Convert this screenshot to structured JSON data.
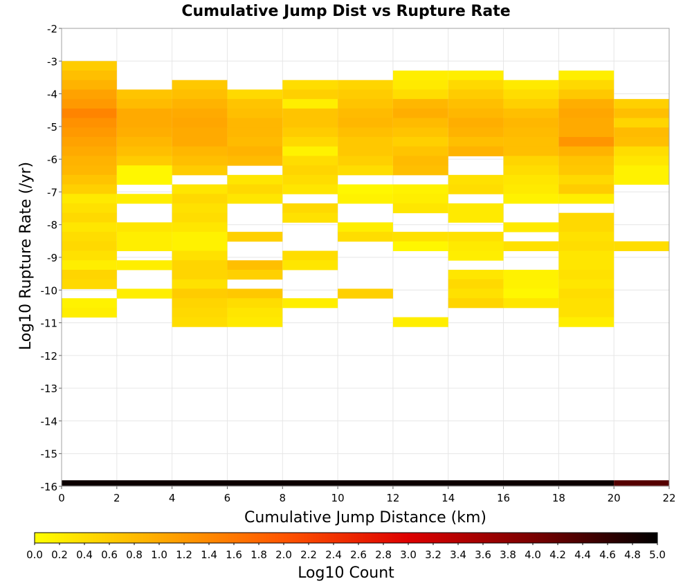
{
  "chart_data": {
    "type": "heatmap",
    "title": "Cumulative Jump Dist vs Rupture Rate",
    "xlabel": "Cumulative Jump Distance (km)",
    "ylabel": "Log10 Rupture Rate (/yr)",
    "xlim": [
      0,
      22
    ],
    "ylim": [
      -16,
      -2
    ],
    "x_ticks": [
      "0",
      "2",
      "4",
      "6",
      "8",
      "10",
      "12",
      "14",
      "16",
      "18",
      "20",
      "22"
    ],
    "y_ticks": [
      "-2",
      "-3",
      "-4",
      "-5",
      "-6",
      "-7",
      "-8",
      "-9",
      "-10",
      "-11",
      "-12",
      "-13",
      "-14",
      "-15",
      "-16"
    ],
    "grid": true,
    "x_bin_width": 2,
    "y_bin_height": 0.29,
    "colorbar": {
      "label": "Log10 Count",
      "range": [
        0,
        5
      ],
      "ticks": [
        "0.0",
        "0.2",
        "0.4",
        "0.6",
        "0.8",
        "1.0",
        "1.2",
        "1.4",
        "1.6",
        "1.8",
        "2.0",
        "2.2",
        "2.4",
        "2.6",
        "2.8",
        "3.0",
        "3.2",
        "3.4",
        "3.6",
        "3.8",
        "4.0",
        "4.2",
        "4.4",
        "4.6",
        "4.8",
        "5.0"
      ],
      "colors": [
        "#ffff00",
        "#ffaa00",
        "#ff5500",
        "#dd0000",
        "#7a0000",
        "#000000"
      ]
    },
    "columns": [
      {
        "x_start": 0,
        "cells": [
          [
            -3.0,
            0.6
          ],
          [
            -3.29,
            0.75
          ],
          [
            -3.58,
            0.9
          ],
          [
            -3.87,
            1.1
          ],
          [
            -4.16,
            1.2
          ],
          [
            -4.45,
            1.45
          ],
          [
            -4.74,
            1.3
          ],
          [
            -5.03,
            1.2
          ],
          [
            -5.32,
            1.1
          ],
          [
            -5.61,
            1.0
          ],
          [
            -5.9,
            0.9
          ],
          [
            -6.19,
            0.85
          ],
          [
            -6.48,
            0.7
          ],
          [
            -6.77,
            0.55
          ],
          [
            -7.06,
            0.25
          ],
          [
            -7.35,
            0.35
          ],
          [
            -7.64,
            0.45
          ],
          [
            -7.93,
            0.3
          ],
          [
            -8.22,
            0.4
          ],
          [
            -8.51,
            0.45
          ],
          [
            -8.8,
            0.35
          ],
          [
            -9.09,
            0.2
          ],
          [
            -9.38,
            0.5
          ],
          [
            -9.67,
            0.45
          ],
          [
            -10.25,
            0.15
          ],
          [
            -10.54,
            0.2
          ]
        ]
      },
      {
        "x_start": 2,
        "cells": [
          [
            -3.87,
            0.7
          ],
          [
            -4.16,
            0.8
          ],
          [
            -4.45,
            1.0
          ],
          [
            -4.74,
            1.0
          ],
          [
            -5.03,
            0.95
          ],
          [
            -5.32,
            0.85
          ],
          [
            -5.61,
            0.75
          ],
          [
            -5.9,
            0.6
          ],
          [
            -6.19,
            0.1
          ],
          [
            -6.48,
            0.1
          ],
          [
            -7.06,
            0.2
          ],
          [
            -7.93,
            0.3
          ],
          [
            -8.22,
            0.2
          ],
          [
            -8.51,
            0.2
          ],
          [
            -9.09,
            0.2
          ],
          [
            -9.96,
            0.2
          ]
        ]
      },
      {
        "x_start": 4,
        "cells": [
          [
            -3.58,
            0.65
          ],
          [
            -3.87,
            0.75
          ],
          [
            -4.16,
            0.9
          ],
          [
            -4.45,
            1.0
          ],
          [
            -4.74,
            1.05
          ],
          [
            -5.03,
            1.0
          ],
          [
            -5.32,
            1.0
          ],
          [
            -5.61,
            0.85
          ],
          [
            -5.9,
            0.75
          ],
          [
            -6.19,
            0.6
          ],
          [
            -6.77,
            0.3
          ],
          [
            -7.06,
            0.45
          ],
          [
            -7.35,
            0.35
          ],
          [
            -7.64,
            0.4
          ],
          [
            -7.93,
            0.3
          ],
          [
            -8.22,
            0.15
          ],
          [
            -8.51,
            0.15
          ],
          [
            -8.8,
            0.35
          ],
          [
            -9.09,
            0.5
          ],
          [
            -9.38,
            0.5
          ],
          [
            -9.67,
            0.35
          ],
          [
            -9.96,
            0.6
          ],
          [
            -10.25,
            0.5
          ],
          [
            -10.54,
            0.45
          ],
          [
            -10.83,
            0.4
          ]
        ]
      },
      {
        "x_start": 6,
        "cells": [
          [
            -3.87,
            0.45
          ],
          [
            -4.16,
            0.7
          ],
          [
            -4.45,
            0.75
          ],
          [
            -4.74,
            0.85
          ],
          [
            -5.03,
            0.85
          ],
          [
            -5.32,
            0.8
          ],
          [
            -5.61,
            0.9
          ],
          [
            -5.9,
            0.8
          ],
          [
            -6.48,
            0.3
          ],
          [
            -6.77,
            0.45
          ],
          [
            -7.06,
            0.3
          ],
          [
            -8.22,
            0.55
          ],
          [
            -9.09,
            0.75
          ],
          [
            -9.38,
            0.55
          ],
          [
            -9.96,
            0.65
          ],
          [
            -10.25,
            0.4
          ],
          [
            -10.54,
            0.3
          ],
          [
            -10.83,
            0.25
          ]
        ]
      },
      {
        "x_start": 8,
        "cells": [
          [
            -3.58,
            0.4
          ],
          [
            -3.87,
            0.55
          ],
          [
            -4.16,
            0.2
          ],
          [
            -4.45,
            0.7
          ],
          [
            -4.74,
            0.7
          ],
          [
            -5.03,
            0.6
          ],
          [
            -5.32,
            0.45
          ],
          [
            -5.61,
            0.15
          ],
          [
            -5.9,
            0.4
          ],
          [
            -6.19,
            0.5
          ],
          [
            -6.48,
            0.4
          ],
          [
            -6.77,
            0.3
          ],
          [
            -7.35,
            0.45
          ],
          [
            -7.64,
            0.35
          ],
          [
            -8.8,
            0.4
          ],
          [
            -9.09,
            0.3
          ],
          [
            -10.25,
            0.2
          ]
        ]
      },
      {
        "x_start": 10,
        "cells": [
          [
            -3.58,
            0.5
          ],
          [
            -3.87,
            0.6
          ],
          [
            -4.16,
            0.7
          ],
          [
            -4.45,
            0.8
          ],
          [
            -4.74,
            0.85
          ],
          [
            -5.03,
            0.75
          ],
          [
            -5.32,
            0.65
          ],
          [
            -5.61,
            0.65
          ],
          [
            -5.9,
            0.55
          ],
          [
            -6.19,
            0.4
          ],
          [
            -6.77,
            0.1
          ],
          [
            -7.06,
            0.15
          ],
          [
            -7.93,
            0.2
          ],
          [
            -8.22,
            0.4
          ],
          [
            -9.96,
            0.55
          ]
        ]
      },
      {
        "x_start": 12,
        "cells": [
          [
            -3.29,
            0.2
          ],
          [
            -3.58,
            0.25
          ],
          [
            -3.87,
            0.4
          ],
          [
            -4.16,
            0.85
          ],
          [
            -4.45,
            0.95
          ],
          [
            -4.74,
            0.8
          ],
          [
            -5.03,
            0.7
          ],
          [
            -5.32,
            0.55
          ],
          [
            -5.61,
            0.7
          ],
          [
            -5.9,
            0.8
          ],
          [
            -6.19,
            0.75
          ],
          [
            -6.77,
            0.15
          ],
          [
            -7.06,
            0.2
          ],
          [
            -7.35,
            0.3
          ],
          [
            -8.22,
            0.35
          ],
          [
            -8.51,
            0.1
          ],
          [
            -10.83,
            0.2
          ]
        ]
      },
      {
        "x_start": 14,
        "cells": [
          [
            -3.29,
            0.2
          ],
          [
            -3.58,
            0.45
          ],
          [
            -3.87,
            0.6
          ],
          [
            -4.16,
            0.75
          ],
          [
            -4.45,
            0.85
          ],
          [
            -4.74,
            0.95
          ],
          [
            -5.03,
            0.9
          ],
          [
            -5.32,
            0.75
          ],
          [
            -5.61,
            0.9
          ],
          [
            -6.48,
            0.35
          ],
          [
            -6.77,
            0.4
          ],
          [
            -7.35,
            0.25
          ],
          [
            -7.64,
            0.25
          ],
          [
            -8.22,
            0.35
          ],
          [
            -8.51,
            0.25
          ],
          [
            -8.8,
            0.2
          ],
          [
            -9.38,
            0.3
          ],
          [
            -9.67,
            0.45
          ],
          [
            -9.96,
            0.35
          ],
          [
            -10.25,
            0.5
          ]
        ]
      },
      {
        "x_start": 16,
        "cells": [
          [
            -3.58,
            0.25
          ],
          [
            -3.87,
            0.4
          ],
          [
            -4.16,
            0.55
          ],
          [
            -4.45,
            0.75
          ],
          [
            -4.74,
            0.85
          ],
          [
            -5.03,
            0.8
          ],
          [
            -5.32,
            0.75
          ],
          [
            -5.61,
            0.75
          ],
          [
            -5.9,
            0.5
          ],
          [
            -6.19,
            0.4
          ],
          [
            -6.48,
            0.3
          ],
          [
            -6.77,
            0.25
          ],
          [
            -7.06,
            0.15
          ],
          [
            -7.93,
            0.25
          ],
          [
            -8.51,
            0.35
          ],
          [
            -9.38,
            0.15
          ],
          [
            -9.67,
            0.15
          ],
          [
            -9.96,
            0.1
          ],
          [
            -10.25,
            0.3
          ]
        ]
      },
      {
        "x_start": 18,
        "cells": [
          [
            -3.29,
            0.2
          ],
          [
            -3.58,
            0.45
          ],
          [
            -3.87,
            0.65
          ],
          [
            -4.16,
            0.95
          ],
          [
            -4.45,
            1.05
          ],
          [
            -4.74,
            1.0
          ],
          [
            -5.03,
            1.0
          ],
          [
            -5.32,
            1.25
          ],
          [
            -5.61,
            0.9
          ],
          [
            -5.9,
            0.7
          ],
          [
            -6.19,
            0.65
          ],
          [
            -6.48,
            0.45
          ],
          [
            -6.77,
            0.6
          ],
          [
            -7.06,
            0.2
          ],
          [
            -7.64,
            0.45
          ],
          [
            -7.93,
            0.45
          ],
          [
            -8.22,
            0.35
          ],
          [
            -8.51,
            0.4
          ],
          [
            -8.8,
            0.3
          ],
          [
            -9.09,
            0.3
          ],
          [
            -9.38,
            0.35
          ],
          [
            -9.67,
            0.3
          ],
          [
            -9.96,
            0.4
          ],
          [
            -10.25,
            0.35
          ],
          [
            -10.54,
            0.35
          ],
          [
            -10.83,
            0.2
          ]
        ]
      },
      {
        "x_start": 20,
        "cells": [
          [
            -4.16,
            0.55
          ],
          [
            -4.45,
            0.75
          ],
          [
            -4.74,
            0.5
          ],
          [
            -5.03,
            0.8
          ],
          [
            -5.32,
            0.75
          ],
          [
            -5.61,
            0.4
          ],
          [
            -5.9,
            0.3
          ],
          [
            -6.19,
            0.15
          ],
          [
            -6.48,
            0.15
          ],
          [
            -8.51,
            0.4
          ]
        ]
      }
    ],
    "bottom_band": {
      "y_center": -15.9,
      "segments": [
        {
          "x_start": 0,
          "x_end": 20,
          "value": 4.9
        },
        {
          "x_start": 20,
          "x_end": 22,
          "value": 4.3
        }
      ]
    }
  }
}
